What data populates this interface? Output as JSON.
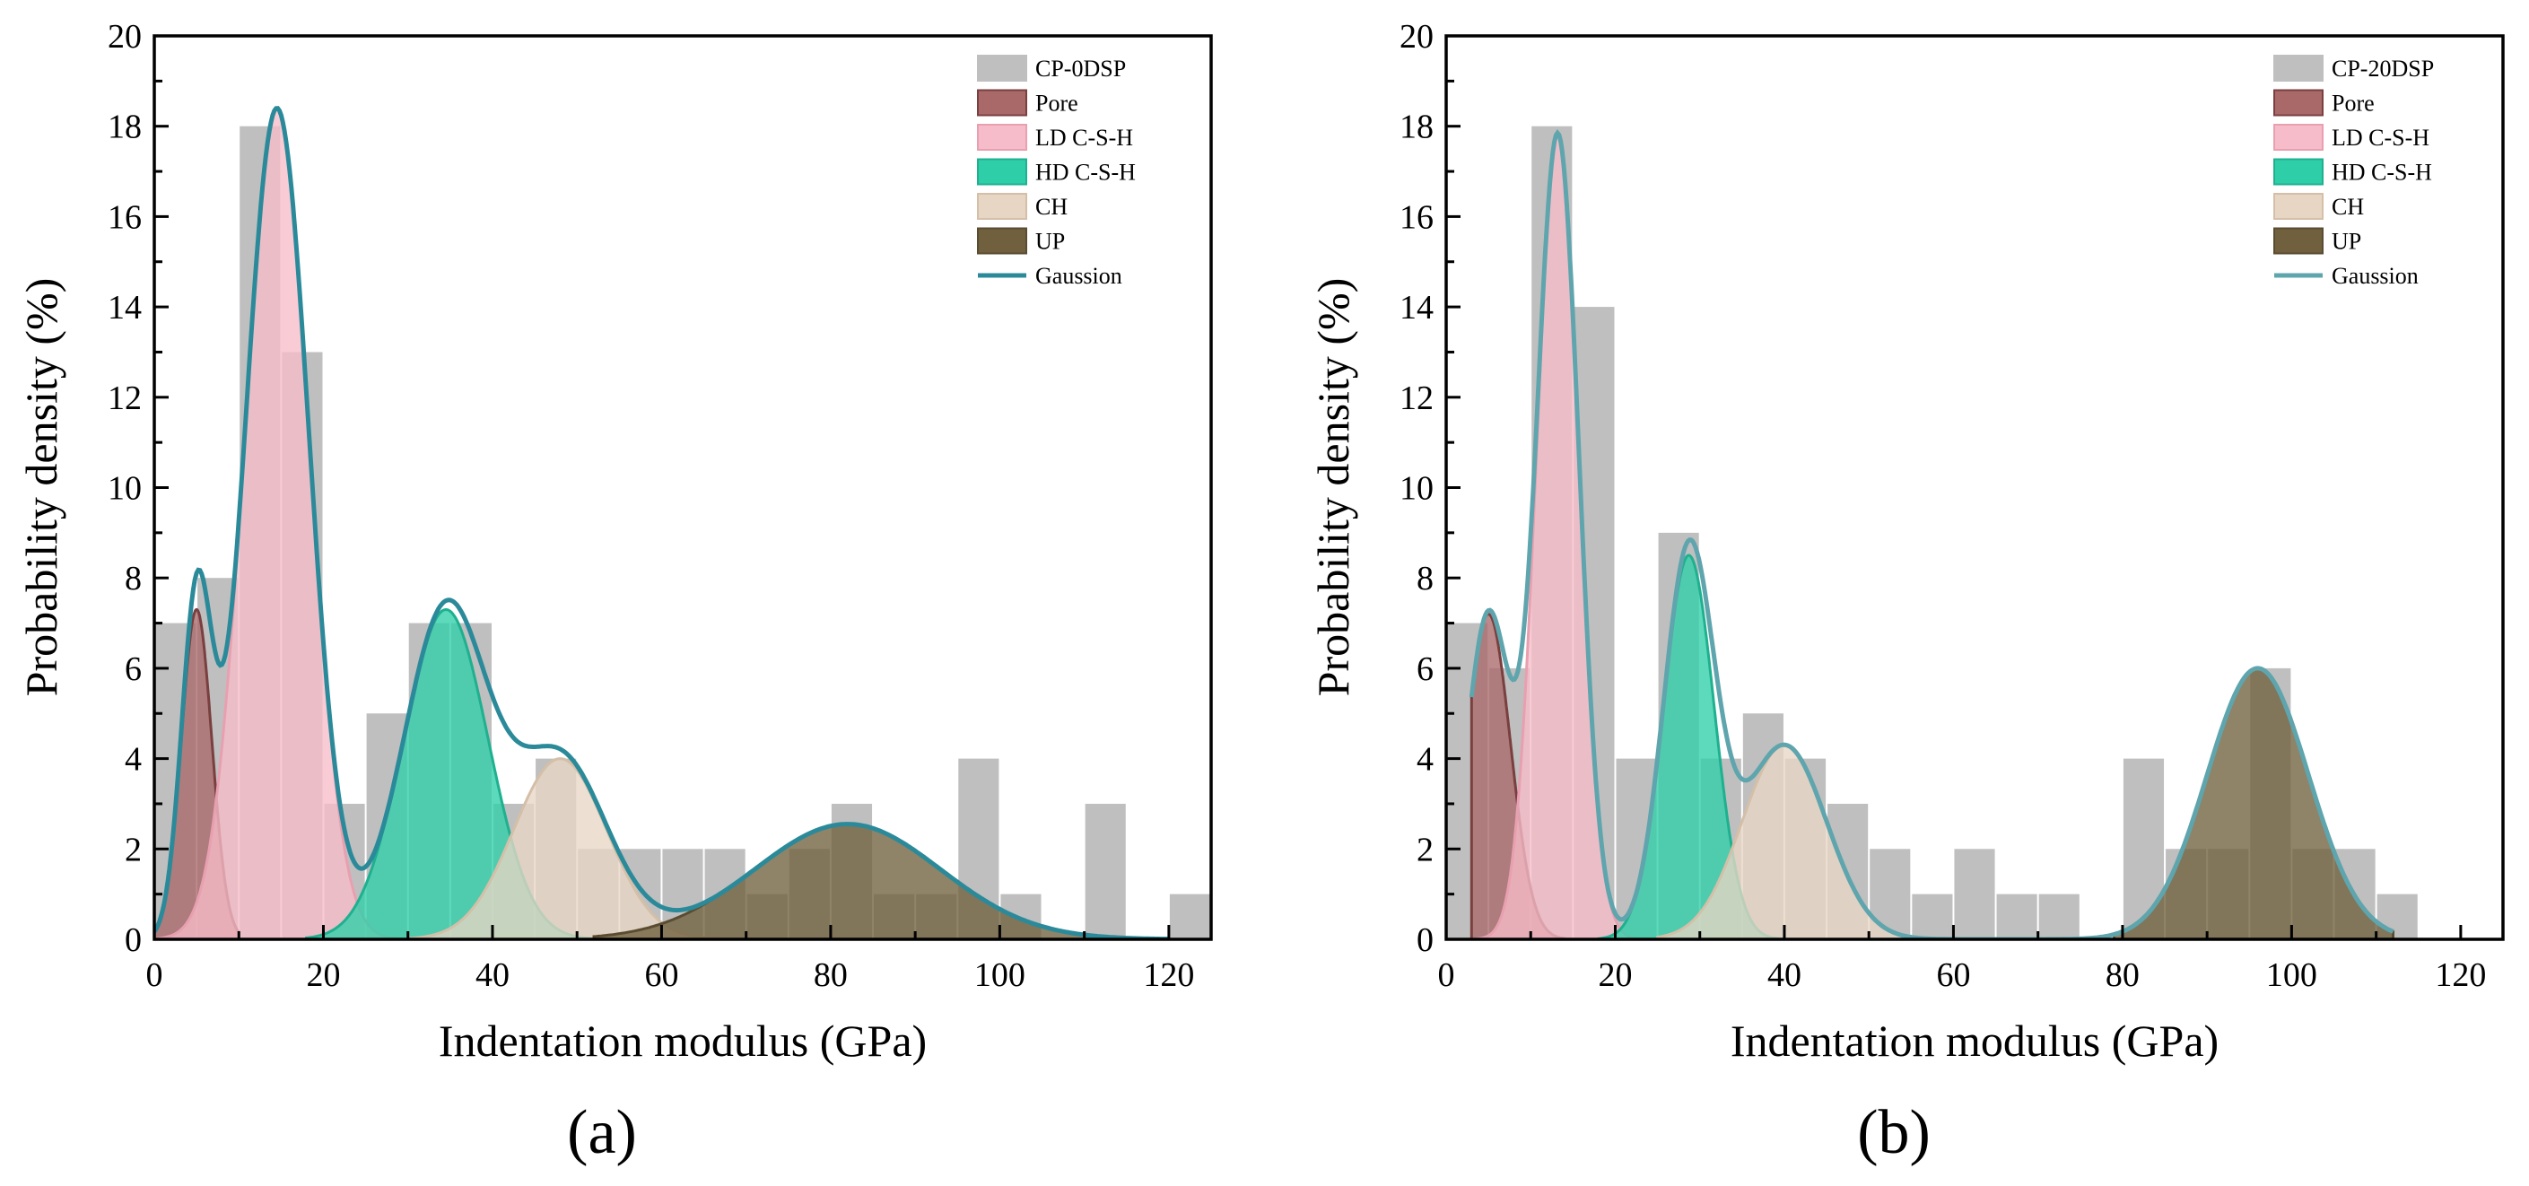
{
  "figure": {
    "panels": [
      {
        "panel_label": "(a)"
      },
      {
        "panel_label": "(b)"
      }
    ]
  },
  "chart_data": [
    {
      "type": "histogram-with-gaussian-fits",
      "xlabel": "Indentation modulus (GPa)",
      "ylabel": "Probability density (%)",
      "xlim": [
        0,
        125
      ],
      "ylim": [
        0,
        20
      ],
      "xticks": [
        0,
        20,
        40,
        60,
        80,
        100,
        120
      ],
      "yticks": [
        0,
        2,
        4,
        6,
        8,
        10,
        12,
        14,
        16,
        18,
        20
      ],
      "legend_position": "top-right",
      "histogram": {
        "name": "CP-0DSP",
        "color": "#bfbfbf",
        "bin_width": 5,
        "bin_starts": [
          0,
          5,
          10,
          15,
          20,
          25,
          30,
          35,
          40,
          45,
          50,
          55,
          60,
          65,
          70,
          75,
          80,
          85,
          90,
          95,
          100,
          105,
          110,
          115,
          120
        ],
        "values": [
          7,
          8,
          18,
          13,
          3,
          5,
          7,
          7,
          3,
          4,
          2,
          2,
          2,
          2,
          1,
          2,
          3,
          1,
          1,
          4,
          1,
          0,
          3,
          0,
          1
        ]
      },
      "components": [
        {
          "name": "Pore",
          "fill": "#a96969",
          "stroke": "#7a3f3f",
          "mean": 5,
          "sd": 1.8,
          "peak": 7.3,
          "range": [
            0,
            10
          ]
        },
        {
          "name": "LD C-S-H",
          "fill": "#f7bcc9",
          "stroke": "#e8a0b0",
          "mean": 14.5,
          "sd": 3.8,
          "peak": 18.4,
          "range": [
            0,
            30
          ]
        },
        {
          "name": "HD C-S-H",
          "fill": "#2ecfa8",
          "stroke": "#1fb090",
          "mean": 34.5,
          "sd": 5,
          "peak": 7.3,
          "range": [
            18,
            52
          ]
        },
        {
          "name": "CH",
          "fill": "#e8d6c4",
          "stroke": "#d4bfa8",
          "mean": 48,
          "sd": 5.5,
          "peak": 4.0,
          "range": [
            30,
            70
          ]
        },
        {
          "name": "UP",
          "fill": "#70603e",
          "stroke": "#5a4c30",
          "mean": 82,
          "sd": 11,
          "peak": 2.55,
          "range": [
            52,
            120
          ]
        }
      ],
      "gaussian": {
        "name": "Gaussion",
        "color": "#2b8a9a",
        "range": [
          0,
          120
        ]
      }
    },
    {
      "type": "histogram-with-gaussian-fits",
      "xlabel": "Indentation modulus (GPa)",
      "ylabel": "Probability density (%)",
      "xlim": [
        0,
        125
      ],
      "ylim": [
        0,
        20
      ],
      "xticks": [
        0,
        20,
        40,
        60,
        80,
        100,
        120
      ],
      "yticks": [
        0,
        2,
        4,
        6,
        8,
        10,
        12,
        14,
        16,
        18,
        20
      ],
      "legend_position": "top-right",
      "histogram": {
        "name": "CP-20DSP",
        "color": "#bfbfbf",
        "bin_width": 5,
        "bin_starts": [
          0,
          5,
          10,
          15,
          20,
          25,
          30,
          35,
          40,
          45,
          50,
          55,
          60,
          65,
          70,
          75,
          80,
          85,
          90,
          95,
          100,
          105,
          110
        ],
        "values": [
          7,
          6,
          18,
          14,
          4,
          9,
          4,
          5,
          4,
          3,
          2,
          1,
          2,
          1,
          1,
          0,
          4,
          2,
          2,
          6,
          2,
          2,
          1
        ]
      },
      "components": [
        {
          "name": "Pore",
          "fill": "#a96969",
          "stroke": "#7a3f3f",
          "mean": 5,
          "sd": 2.6,
          "peak": 7.2,
          "range": [
            3,
            14
          ]
        },
        {
          "name": "LD C-S-H",
          "fill": "#f7bcc9",
          "stroke": "#e8a0b0",
          "mean": 13.2,
          "sd": 2.5,
          "peak": 17.8,
          "range": [
            3,
            25
          ]
        },
        {
          "name": "HD C-S-H",
          "fill": "#2ecfa8",
          "stroke": "#1fb090",
          "mean": 28.7,
          "sd": 3,
          "peak": 8.5,
          "range": [
            18,
            40
          ]
        },
        {
          "name": "CH",
          "fill": "#e8d6c4",
          "stroke": "#d4bfa8",
          "mean": 40,
          "sd": 5,
          "peak": 4.3,
          "range": [
            25,
            55
          ]
        },
        {
          "name": "UP",
          "fill": "#70603e",
          "stroke": "#5a4c30",
          "mean": 96,
          "sd": 6,
          "peak": 6.0,
          "range": [
            79,
            112
          ]
        }
      ],
      "gaussian": {
        "name": "Gaussion",
        "color": "#5fa5ad",
        "range": [
          3,
          112
        ]
      }
    }
  ]
}
